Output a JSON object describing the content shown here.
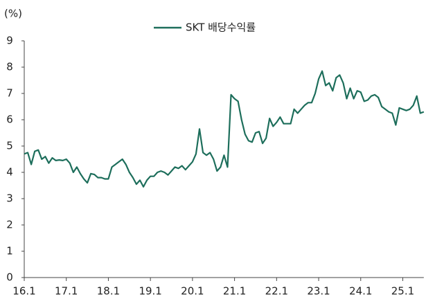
{
  "chart_data": {
    "type": "line",
    "unit_label": "(%)",
    "categories": [
      "16.1",
      null,
      null,
      null,
      null,
      null,
      null,
      null,
      null,
      null,
      null,
      null,
      "17.1",
      null,
      null,
      null,
      null,
      null,
      null,
      null,
      null,
      null,
      null,
      null,
      "18.1",
      null,
      null,
      null,
      null,
      null,
      null,
      null,
      null,
      null,
      null,
      null,
      "19.1",
      null,
      null,
      null,
      null,
      null,
      null,
      null,
      null,
      null,
      null,
      null,
      "20.1",
      null,
      null,
      null,
      null,
      null,
      null,
      null,
      null,
      null,
      null,
      null,
      "21.1",
      null,
      null,
      null,
      null,
      null,
      null,
      null,
      null,
      null,
      null,
      null,
      "22.1",
      null,
      null,
      null,
      null,
      null,
      null,
      null,
      null,
      null,
      null,
      null,
      "23.1",
      null,
      null,
      null,
      null,
      null,
      null,
      null,
      null,
      null,
      null,
      null,
      "24.1",
      null,
      null,
      null,
      null,
      null,
      null,
      null,
      null,
      null,
      null,
      null,
      "25.1",
      null,
      null,
      null,
      null,
      null,
      null
    ],
    "series": [
      {
        "name": "SKT 배당수익률",
        "color": "#1d6e5b",
        "values": [
          4.7,
          4.75,
          4.3,
          4.8,
          4.85,
          4.5,
          4.6,
          4.35,
          4.55,
          4.45,
          4.47,
          4.45,
          4.5,
          4.35,
          4.0,
          4.2,
          3.95,
          3.75,
          3.6,
          3.95,
          3.92,
          3.8,
          3.8,
          3.75,
          3.75,
          4.2,
          4.3,
          4.4,
          4.5,
          4.3,
          4.0,
          3.8,
          3.55,
          3.7,
          3.45,
          3.7,
          3.85,
          3.85,
          4.0,
          4.05,
          4.0,
          3.9,
          4.05,
          4.2,
          4.15,
          4.25,
          4.1,
          4.25,
          4.4,
          4.7,
          5.65,
          4.75,
          4.65,
          4.75,
          4.5,
          4.05,
          4.2,
          4.65,
          4.2,
          6.95,
          6.8,
          6.7,
          6.0,
          5.45,
          5.2,
          5.15,
          5.5,
          5.55,
          5.1,
          5.3,
          6.05,
          5.75,
          5.9,
          6.1,
          5.85,
          5.85,
          5.85,
          6.4,
          6.25,
          6.4,
          6.55,
          6.65,
          6.65,
          7.0,
          7.55,
          7.85,
          7.3,
          7.4,
          7.1,
          7.6,
          7.7,
          7.4,
          6.8,
          7.2,
          6.8,
          7.1,
          7.05,
          6.7,
          6.75,
          6.9,
          6.95,
          6.85,
          6.5,
          6.4,
          6.3,
          6.25,
          5.8,
          6.45,
          6.4,
          6.35,
          6.4,
          6.55,
          6.9,
          6.25,
          6.3
        ]
      }
    ],
    "ylim": [
      0,
      9
    ],
    "yticks": [
      0,
      1,
      2,
      3,
      4,
      5,
      6,
      7,
      8,
      9
    ],
    "legend": "top"
  }
}
